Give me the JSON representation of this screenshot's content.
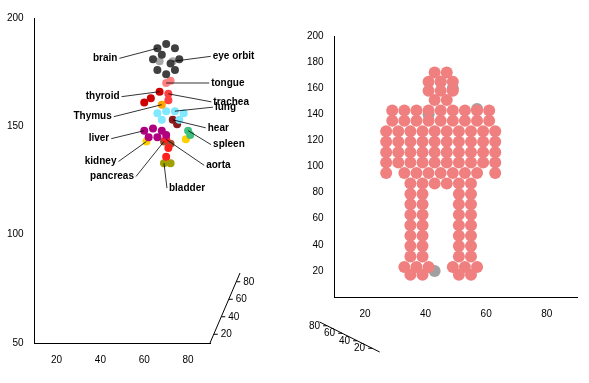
{
  "chart_data": [
    {
      "type": "scatter",
      "grid": false,
      "xlim": [
        10,
        90
      ],
      "xticks": [
        20,
        40,
        60,
        80
      ],
      "ylim": [
        50,
        200
      ],
      "yticks": [
        50,
        100,
        150,
        200
      ],
      "zlim": [
        10,
        90
      ],
      "zticks": [
        20,
        40,
        60,
        80
      ],
      "series": [
        {
          "name": "brain",
          "color": "#404040",
          "points": [
            [
              66,
              186
            ],
            [
              70,
              188
            ],
            [
              74,
              186
            ],
            [
              64,
              181
            ],
            [
              76,
              181
            ],
            [
              66,
              176
            ],
            [
              74,
              176
            ],
            [
              70,
              174
            ],
            [
              68,
              183
            ],
            [
              72,
              179
            ]
          ]
        },
        {
          "name": "eye orbit",
          "color": "#a8a8a8",
          "points": [
            [
              73,
              180
            ],
            [
              67,
              180
            ]
          ]
        },
        {
          "name": "tongue",
          "color": "#ff8080",
          "points": [
            [
              70,
              170
            ],
            [
              72,
              171
            ]
          ]
        },
        {
          "name": "trachea",
          "color": "#ff4040",
          "points": [
            [
              71,
              165
            ],
            [
              71,
              162
            ]
          ]
        },
        {
          "name": "thyroid",
          "color": "#cc0000",
          "points": [
            [
              67,
              166
            ],
            [
              63,
              163
            ],
            [
              60,
              161
            ]
          ]
        },
        {
          "name": "Thymus",
          "color": "#ffa500",
          "points": [
            [
              68,
              160
            ]
          ]
        },
        {
          "name": "lung",
          "color": "#80e8ff",
          "points": [
            [
              74,
              157
            ],
            [
              66,
              156
            ],
            [
              70,
              157
            ],
            [
              78,
              156
            ],
            [
              68,
              153
            ],
            [
              76,
              153
            ]
          ]
        },
        {
          "name": "hear",
          "color": "#8b1a1a",
          "points": [
            [
              73,
              153
            ],
            [
              75,
              151
            ]
          ]
        },
        {
          "name": "spleen",
          "color": "#40c080",
          "points": [
            [
              80,
              148
            ],
            [
              81,
              146
            ]
          ]
        },
        {
          "name": "liver",
          "color": "#b00080",
          "points": [
            [
              60,
              148
            ],
            [
              64,
              149
            ],
            [
              68,
              148
            ],
            [
              62,
              145
            ],
            [
              66,
              145
            ],
            [
              70,
              146
            ]
          ]
        },
        {
          "name": "aorta",
          "color": "#ff2020",
          "points": [
            [
              70,
              144
            ],
            [
              71,
              140
            ],
            [
              70,
              136
            ]
          ]
        },
        {
          "name": "kidney",
          "color": "#ffd000",
          "points": [
            [
              61,
              143
            ],
            [
              79,
              144
            ]
          ]
        },
        {
          "name": "bladder",
          "color": "#a0a000",
          "points": [
            [
              69,
              133
            ],
            [
              72,
              133
            ]
          ]
        },
        {
          "name": "pancreas",
          "color": "#a05030",
          "points": [
            [
              69,
              143
            ],
            [
              72,
              142
            ]
          ]
        }
      ]
    },
    {
      "type": "scatter",
      "grid": false,
      "xlim": [
        10,
        90
      ],
      "xticks": [
        20,
        40,
        60,
        80
      ],
      "ylim": [
        0,
        200
      ],
      "yticks": [
        20,
        40,
        60,
        80,
        100,
        120,
        140,
        160,
        180,
        200
      ],
      "zlim": [
        10,
        90
      ],
      "zticks": [
        20,
        40,
        60,
        80
      ],
      "series": [
        {
          "color": "#f08080",
          "points": [
            [
              43,
              172
            ],
            [
              47,
              172
            ],
            [
              41,
              165
            ],
            [
              45,
              165
            ],
            [
              49,
              165
            ],
            [
              41,
              158
            ],
            [
              45,
              158
            ],
            [
              49,
              158
            ],
            [
              43,
              151
            ],
            [
              47,
              151
            ],
            [
              29,
              143
            ],
            [
              33,
              143
            ],
            [
              37,
              143
            ],
            [
              41,
              143
            ],
            [
              45,
              143
            ],
            [
              49,
              143
            ],
            [
              53,
              143
            ],
            [
              57,
              143
            ],
            [
              61,
              143
            ],
            [
              29,
              135
            ],
            [
              33,
              135
            ],
            [
              37,
              135
            ],
            [
              41,
              135
            ],
            [
              45,
              135
            ],
            [
              49,
              135
            ],
            [
              53,
              135
            ],
            [
              57,
              135
            ],
            [
              61,
              135
            ],
            [
              27,
              127
            ],
            [
              31,
              127
            ],
            [
              35,
              127
            ],
            [
              39,
              127
            ],
            [
              43,
              127
            ],
            [
              47,
              127
            ],
            [
              51,
              127
            ],
            [
              55,
              127
            ],
            [
              59,
              127
            ],
            [
              63,
              127
            ],
            [
              27,
              119
            ],
            [
              31,
              119
            ],
            [
              35,
              119
            ],
            [
              39,
              119
            ],
            [
              43,
              119
            ],
            [
              47,
              119
            ],
            [
              51,
              119
            ],
            [
              55,
              119
            ],
            [
              59,
              119
            ],
            [
              63,
              119
            ],
            [
              27,
              111
            ],
            [
              31,
              111
            ],
            [
              35,
              111
            ],
            [
              39,
              111
            ],
            [
              43,
              111
            ],
            [
              47,
              111
            ],
            [
              51,
              111
            ],
            [
              55,
              111
            ],
            [
              59,
              111
            ],
            [
              63,
              111
            ],
            [
              27,
              103
            ],
            [
              31,
              103
            ],
            [
              35,
              103
            ],
            [
              39,
              103
            ],
            [
              43,
              103
            ],
            [
              47,
              103
            ],
            [
              51,
              103
            ],
            [
              55,
              103
            ],
            [
              59,
              103
            ],
            [
              63,
              103
            ],
            [
              27,
              95
            ],
            [
              33,
              95
            ],
            [
              37,
              95
            ],
            [
              41,
              95
            ],
            [
              45,
              95
            ],
            [
              49,
              95
            ],
            [
              53,
              95
            ],
            [
              57,
              95
            ],
            [
              63,
              95
            ],
            [
              35,
              87
            ],
            [
              39,
              87
            ],
            [
              43,
              87
            ],
            [
              47,
              87
            ],
            [
              51,
              87
            ],
            [
              55,
              87
            ],
            [
              35,
              79
            ],
            [
              39,
              79
            ],
            [
              51,
              79
            ],
            [
              55,
              79
            ],
            [
              35,
              71
            ],
            [
              39,
              71
            ],
            [
              51,
              71
            ],
            [
              55,
              71
            ],
            [
              35,
              63
            ],
            [
              39,
              63
            ],
            [
              51,
              63
            ],
            [
              55,
              63
            ],
            [
              35,
              55
            ],
            [
              39,
              55
            ],
            [
              51,
              55
            ],
            [
              55,
              55
            ],
            [
              35,
              47
            ],
            [
              39,
              47
            ],
            [
              51,
              47
            ],
            [
              55,
              47
            ],
            [
              35,
              39
            ],
            [
              39,
              39
            ],
            [
              51,
              39
            ],
            [
              55,
              39
            ],
            [
              35,
              31
            ],
            [
              39,
              31
            ],
            [
              51,
              31
            ],
            [
              55,
              31
            ],
            [
              33,
              23
            ],
            [
              37,
              23
            ],
            [
              41,
              23
            ],
            [
              49,
              23
            ],
            [
              53,
              23
            ],
            [
              57,
              23
            ],
            [
              35,
              17
            ],
            [
              39,
              17
            ],
            [
              51,
              17
            ],
            [
              55,
              17
            ]
          ]
        },
        {
          "color": "#a0a0a0",
          "points": [
            [
              45,
              165
            ],
            [
              49,
              160
            ],
            [
              41,
              140
            ],
            [
              57,
              144
            ],
            [
              43,
              20
            ]
          ]
        }
      ]
    }
  ]
}
